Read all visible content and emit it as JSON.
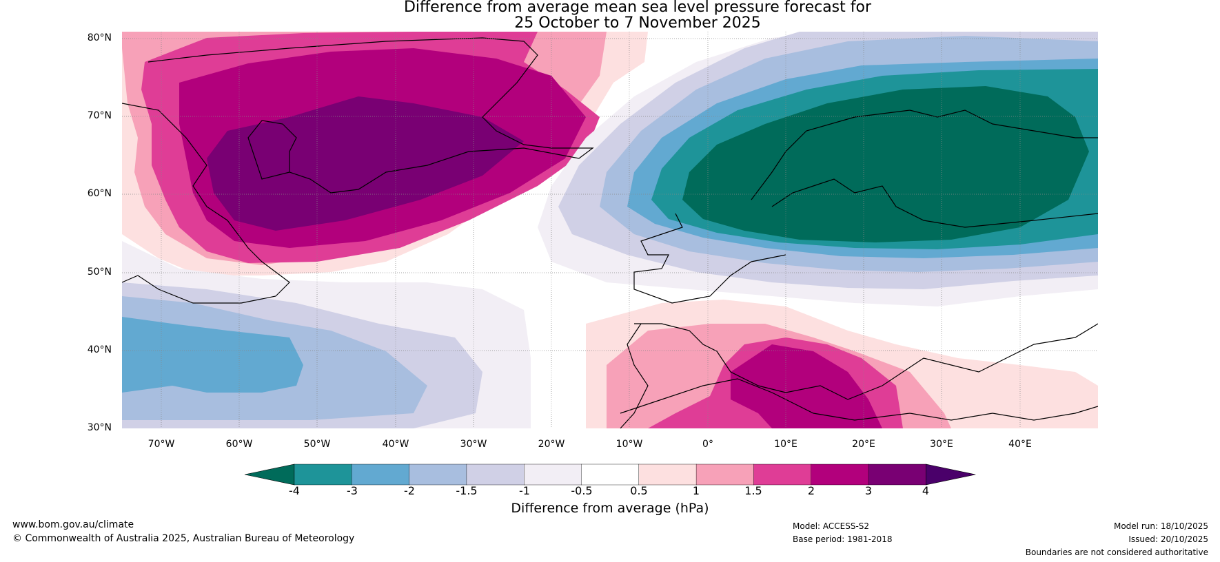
{
  "title": {
    "line1": "Difference from average mean sea level pressure forecast for",
    "line2": "25 October to 7 November 2025"
  },
  "map": {
    "latitude_labels": [
      "80°N",
      "70°N",
      "60°N",
      "50°N",
      "40°N",
      "30°N"
    ],
    "longitude_labels": [
      "70°W",
      "60°W",
      "50°W",
      "40°W",
      "30°W",
      "20°W",
      "10°W",
      "0°",
      "10°E",
      "20°E",
      "30°E",
      "40°E"
    ]
  },
  "colorbar": {
    "title": "Difference from average (hPa)",
    "tick_labels": [
      "-4",
      "-3",
      "-2",
      "-1.5",
      "-1",
      "-0.5",
      "0.5",
      "1",
      "1.5",
      "2",
      "3",
      "4"
    ],
    "colors": [
      "#006b5a",
      "#1e9499",
      "#62a9d1",
      "#a8bedf",
      "#d0d0e6",
      "#f2eef5",
      "#ffffff",
      "#fde0e0",
      "#f7a1b8",
      "#df3d96",
      "#b2007c",
      "#790073",
      "#4a006a"
    ]
  },
  "footer": {
    "website": "www.bom.gov.au/climate",
    "copyright": "© Commonwealth of Australia 2025, Australian Bureau of Meteorology",
    "model": "Model: ACCESS-S2",
    "base_period": "Base period: 1981-2018",
    "model_run": "Model run: 18/10/2025",
    "issued": "Issued: 20/10/2025",
    "disclaimer": "Boundaries are not considered authoritative"
  }
}
